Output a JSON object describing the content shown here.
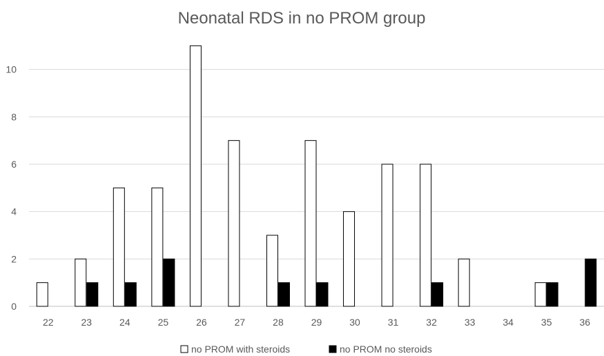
{
  "chart_data": {
    "type": "bar",
    "title": "Neonatal RDS in no PROM group",
    "xlabel": "",
    "ylabel": "",
    "categories": [
      "22",
      "23",
      "24",
      "25",
      "26",
      "27",
      "28",
      "29",
      "30",
      "31",
      "32",
      "33",
      "34",
      "35",
      "36"
    ],
    "ylim": [
      0,
      12
    ],
    "yticks": [
      0,
      2,
      4,
      6,
      8,
      10
    ],
    "grid": true,
    "legend_position": "bottom",
    "series": [
      {
        "name": "no PROM with steroids",
        "fill": "#ffffff",
        "stroke": "#000000",
        "values": [
          1,
          2,
          5,
          5,
          11,
          7,
          3,
          7,
          4,
          6,
          6,
          2,
          0,
          1,
          0
        ]
      },
      {
        "name": "no PROM no steroids",
        "fill": "#000000",
        "stroke": "#000000",
        "values": [
          0,
          1,
          1,
          2,
          0,
          0,
          1,
          1,
          0,
          0,
          1,
          0,
          0,
          1,
          2
        ]
      }
    ],
    "colors": {
      "grid": "#d9d9d9",
      "axis": "#bfbfbf",
      "text": "#595959"
    }
  }
}
